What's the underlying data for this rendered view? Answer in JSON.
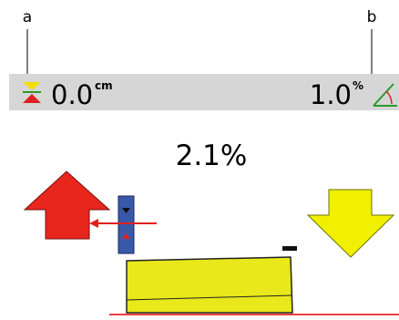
{
  "callouts": {
    "left": "a",
    "right": "b"
  },
  "status_bar": {
    "depth_value": "0.0",
    "depth_unit": "cm",
    "slope_value": "1.0",
    "slope_unit": "%"
  },
  "main": {
    "slope_reading": "2.1%"
  }
}
